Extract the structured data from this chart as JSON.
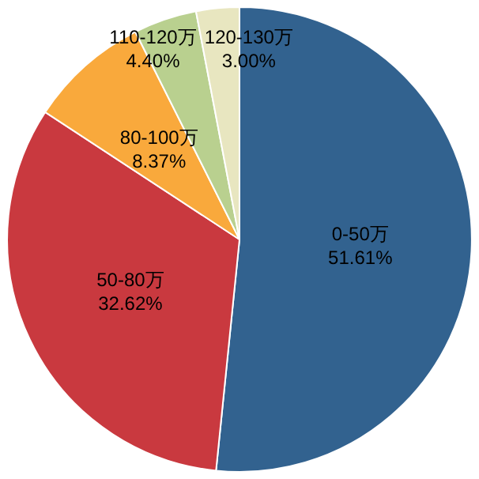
{
  "chart_data": {
    "type": "pie",
    "categories": [
      "0-50万",
      "50-80万",
      "80-100万",
      "110-120万",
      "120-130万"
    ],
    "values": [
      51.61,
      32.62,
      8.37,
      4.4,
      3.0
    ],
    "value_labels": [
      "51.61%",
      "32.62%",
      "8.37%",
      "4.40%",
      "3.00%"
    ],
    "colors": [
      "#32628f",
      "#c9393f",
      "#f9a93c",
      "#b9d08f",
      "#e8e6c0"
    ],
    "legend": false
  }
}
